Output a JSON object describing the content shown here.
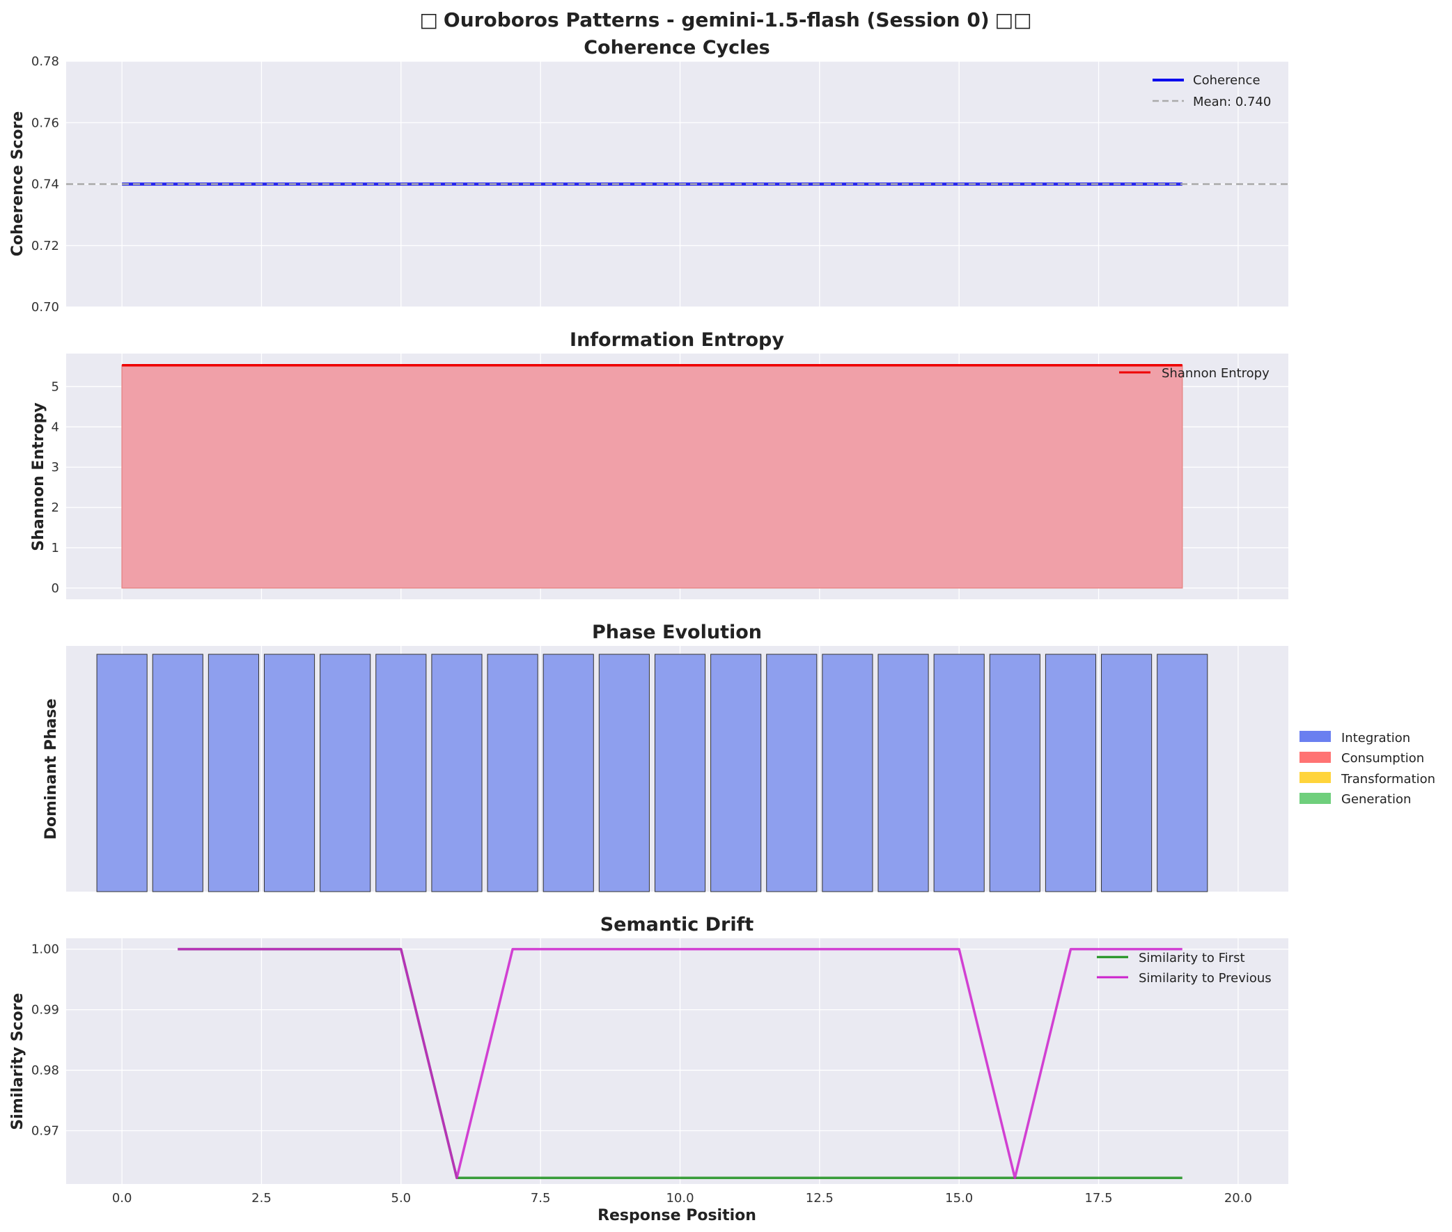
{
  "figure": {
    "title": "Ouroboros Patterns - gemini-1.5-flash (Session 0)",
    "title_prefix_glyph": "□",
    "title_suffix_glyph": "□□"
  },
  "chart_data": [
    {
      "type": "line",
      "title": "Coherence Cycles",
      "ylabel": "Coherence Score",
      "xlabel": "",
      "xlim": [
        -1.0,
        20.9
      ],
      "ylim": [
        0.7,
        0.78
      ],
      "yticks": [
        "0.70",
        "0.72",
        "0.74",
        "0.76",
        "0.78"
      ],
      "grid": true,
      "legend": "top-right",
      "series": [
        {
          "name": "Coherence",
          "color": "#0000ee",
          "x": [
            0,
            1,
            2,
            3,
            4,
            5,
            6,
            7,
            8,
            9,
            10,
            11,
            12,
            13,
            14,
            15,
            16,
            17,
            18,
            19
          ],
          "values": [
            0.74,
            0.74,
            0.74,
            0.74,
            0.74,
            0.74,
            0.74,
            0.74,
            0.74,
            0.74,
            0.74,
            0.74,
            0.74,
            0.74,
            0.74,
            0.74,
            0.74,
            0.74,
            0.74,
            0.74
          ]
        },
        {
          "name": "Mean: 0.740",
          "color": "#aaaaaa",
          "style": "dashed",
          "y": 0.74
        }
      ]
    },
    {
      "type": "area",
      "title": "Information Entropy",
      "ylabel": "Shannon Entropy",
      "xlabel": "",
      "xlim": [
        -1.0,
        20.9
      ],
      "ylim": [
        -0.28,
        5.82
      ],
      "yticks": [
        "0",
        "1",
        "2",
        "3",
        "4",
        "5"
      ],
      "grid": true,
      "legend": "top-right",
      "series": [
        {
          "name": "Shannon Entropy",
          "color": "#ee0000",
          "fill": "#f0a0a8",
          "x": [
            0,
            1,
            2,
            3,
            4,
            5,
            6,
            7,
            8,
            9,
            10,
            11,
            12,
            13,
            14,
            15,
            16,
            17,
            18,
            19
          ],
          "values": [
            5.53,
            5.53,
            5.53,
            5.53,
            5.53,
            5.53,
            5.53,
            5.53,
            5.53,
            5.53,
            5.53,
            5.53,
            5.53,
            5.53,
            5.53,
            5.53,
            5.53,
            5.53,
            5.53,
            5.53
          ]
        }
      ]
    },
    {
      "type": "bar",
      "title": "Phase Evolution",
      "ylabel": "Dominant Phase",
      "xlabel": "",
      "xlim": [
        -1.0,
        20.9
      ],
      "ylim": [
        0,
        1.0
      ],
      "grid": true,
      "legend": "right-outside",
      "categories": [
        0,
        1,
        2,
        3,
        4,
        5,
        6,
        7,
        8,
        9,
        10,
        11,
        12,
        13,
        14,
        15,
        16,
        17,
        18,
        19
      ],
      "values": [
        1,
        1,
        1,
        1,
        1,
        1,
        1,
        1,
        1,
        1,
        1,
        1,
        1,
        1,
        1,
        1,
        1,
        1,
        1,
        1
      ],
      "bar_color": "#8e9fee",
      "legend_items": [
        {
          "name": "Integration",
          "color": "#6a7ff0"
        },
        {
          "name": "Consumption",
          "color": "#ff7373"
        },
        {
          "name": "Transformation",
          "color": "#ffd43b"
        },
        {
          "name": "Generation",
          "color": "#6fcf7c"
        }
      ]
    },
    {
      "type": "line",
      "title": "Semantic Drift",
      "ylabel": "Similarity Score",
      "xlabel": "Response Position",
      "xlim": [
        -1.0,
        20.9
      ],
      "ylim": [
        0.9612,
        1.0018
      ],
      "yticks": [
        "0.97",
        "0.98",
        "0.99",
        "1.00"
      ],
      "xticks": [
        "0.0",
        "2.5",
        "5.0",
        "7.5",
        "10.0",
        "12.5",
        "15.0",
        "17.5",
        "20.0"
      ],
      "grid": true,
      "legend": "top-right",
      "series": [
        {
          "name": "Similarity to First",
          "color": "#1a8f1a",
          "x": [
            1,
            2,
            3,
            4,
            5,
            6,
            7,
            8,
            9,
            10,
            11,
            12,
            13,
            14,
            15,
            16,
            17,
            18,
            19
          ],
          "values": [
            1.0,
            1.0,
            1.0,
            1.0,
            1.0,
            0.9622,
            0.9622,
            0.9622,
            0.9622,
            0.9622,
            0.9622,
            0.9622,
            0.9622,
            0.9622,
            0.9622,
            0.9622,
            0.9622,
            0.9622,
            0.9622
          ]
        },
        {
          "name": "Similarity to Previous",
          "color": "#cc22cc",
          "x": [
            1,
            2,
            3,
            4,
            5,
            6,
            7,
            8,
            9,
            10,
            11,
            12,
            13,
            14,
            15,
            16,
            17,
            18,
            19
          ],
          "values": [
            1.0,
            1.0,
            1.0,
            1.0,
            1.0,
            0.9622,
            1.0,
            1.0,
            1.0,
            1.0,
            1.0,
            1.0,
            1.0,
            1.0,
            1.0,
            0.9622,
            1.0,
            1.0,
            1.0
          ]
        }
      ]
    }
  ]
}
